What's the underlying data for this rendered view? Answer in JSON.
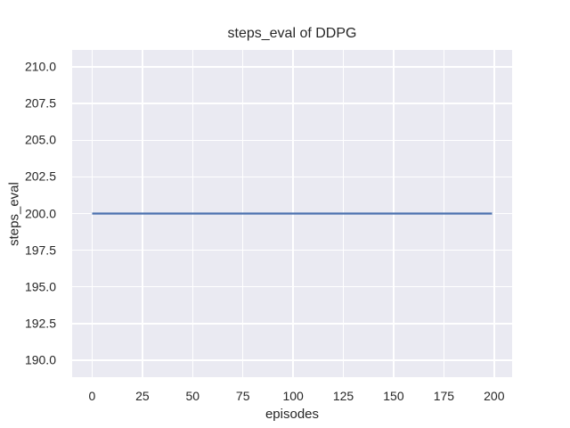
{
  "chart_data": {
    "type": "line",
    "title": "steps_eval of DDPG",
    "xlabel": "episodes",
    "ylabel": "steps_eval",
    "xlim": [
      -9.95,
      208.95
    ],
    "ylim": [
      188.84,
      211.16
    ],
    "grid": true,
    "legend": null,
    "x_ticks": {
      "values": [
        0,
        25,
        50,
        75,
        100,
        125,
        150,
        175,
        200
      ],
      "labels": [
        "0",
        "25",
        "50",
        "75",
        "100",
        "125",
        "150",
        "175",
        "200"
      ]
    },
    "y_ticks": {
      "values": [
        190.0,
        192.5,
        195.0,
        197.5,
        200.0,
        202.5,
        205.0,
        207.5,
        210.0
      ],
      "labels": [
        "190.0",
        "192.5",
        "195.0",
        "197.5",
        "200.0",
        "202.5",
        "205.0",
        "207.5",
        "210.0"
      ]
    },
    "series": [
      {
        "name": "steps_eval",
        "constant_value": 200,
        "x_range": [
          0,
          199
        ],
        "x": [
          0,
          199
        ],
        "y": [
          200,
          200
        ],
        "color": "#4c72b0",
        "linewidth": 2.2
      }
    ],
    "colors": {
      "plot_background": "#eaeaf2",
      "grid": "#ffffff",
      "text": "#262626",
      "figure_background": "#ffffff"
    }
  }
}
